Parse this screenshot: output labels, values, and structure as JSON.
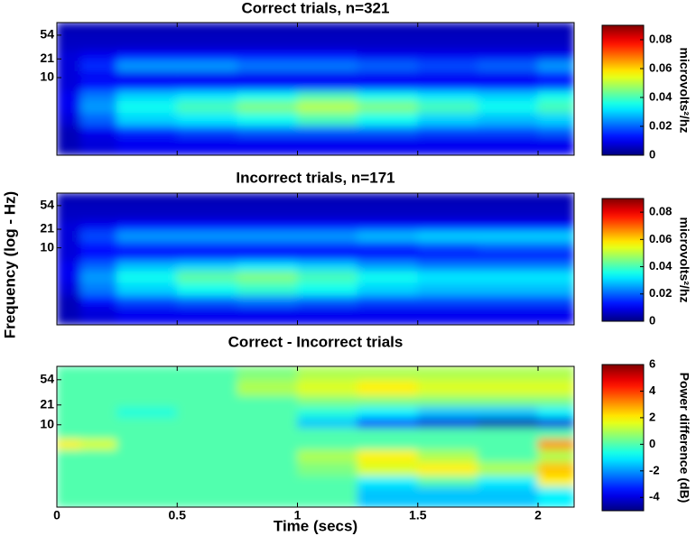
{
  "chart_data": [
    {
      "type": "heatmap",
      "title": "Correct trials, n=321",
      "xlim": [
        0,
        2.15
      ],
      "xticks": [
        0,
        0.5,
        1,
        1.5,
        2
      ],
      "xticklabels": false,
      "ylim": [
        0.46,
        89
      ],
      "yscale": "log",
      "yticks": [
        10,
        21,
        54
      ],
      "x_bins": [
        0,
        0.1,
        0.25,
        0.5,
        0.75,
        1,
        1.25,
        1.5,
        1.75,
        2,
        2.15
      ],
      "y_bins": [
        0.46,
        1,
        1.5,
        2.5,
        4,
        6,
        9,
        13,
        20,
        30,
        54,
        89
      ],
      "z": [
        [
          0.005,
          0.008,
          0.01,
          0.01,
          0.01,
          0.01,
          0.01,
          0.01,
          0.01,
          0.01
        ],
        [
          0.005,
          0.01,
          0.015,
          0.018,
          0.02,
          0.02,
          0.02,
          0.018,
          0.018,
          0.02
        ],
        [
          0.008,
          0.02,
          0.03,
          0.032,
          0.035,
          0.04,
          0.035,
          0.03,
          0.028,
          0.03
        ],
        [
          0.01,
          0.025,
          0.035,
          0.04,
          0.045,
          0.05,
          0.045,
          0.04,
          0.035,
          0.04
        ],
        [
          0.01,
          0.022,
          0.03,
          0.032,
          0.035,
          0.04,
          0.035,
          0.032,
          0.03,
          0.035
        ],
        [
          0.008,
          0.012,
          0.012,
          0.012,
          0.012,
          0.012,
          0.012,
          0.012,
          0.012,
          0.015
        ],
        [
          0.008,
          0.01,
          0.01,
          0.01,
          0.01,
          0.01,
          0.01,
          0.01,
          0.01,
          0.012
        ],
        [
          0.008,
          0.015,
          0.025,
          0.025,
          0.022,
          0.022,
          0.02,
          0.018,
          0.02,
          0.025
        ],
        [
          0.008,
          0.01,
          0.012,
          0.012,
          0.012,
          0.012,
          0.01,
          0.01,
          0.01,
          0.01
        ],
        [
          0.006,
          0.006,
          0.006,
          0.006,
          0.006,
          0.006,
          0.006,
          0.006,
          0.006,
          0.006
        ],
        [
          0.005,
          0.005,
          0.005,
          0.005,
          0.005,
          0.005,
          0.005,
          0.005,
          0.005,
          0.005
        ]
      ],
      "colormap": "jet",
      "zlim": [
        0,
        0.09
      ],
      "zticks": [
        0,
        0.02,
        0.04,
        0.06,
        0.08
      ],
      "colorbar_label": "microvolts²/hz"
    },
    {
      "type": "heatmap",
      "title": "Incorrect trials, n=171",
      "ylabel": "Frequency (log - Hz)",
      "xlim": [
        0,
        2.15
      ],
      "xticks": [
        0,
        0.5,
        1,
        1.5,
        2
      ],
      "xticklabels": false,
      "ylim": [
        0.46,
        89
      ],
      "yscale": "log",
      "yticks": [
        10,
        21,
        54
      ],
      "x_bins": [
        0,
        0.1,
        0.25,
        0.5,
        0.75,
        1,
        1.25,
        1.5,
        1.75,
        2,
        2.15
      ],
      "y_bins": [
        0.46,
        1,
        1.5,
        2.5,
        4,
        6,
        9,
        13,
        20,
        30,
        54,
        89
      ],
      "z": [
        [
          0.005,
          0.008,
          0.01,
          0.01,
          0.01,
          0.01,
          0.01,
          0.01,
          0.01,
          0.01
        ],
        [
          0.005,
          0.012,
          0.018,
          0.02,
          0.022,
          0.02,
          0.018,
          0.018,
          0.018,
          0.018
        ],
        [
          0.008,
          0.022,
          0.03,
          0.035,
          0.038,
          0.035,
          0.03,
          0.028,
          0.028,
          0.028
        ],
        [
          0.01,
          0.025,
          0.035,
          0.042,
          0.045,
          0.04,
          0.035,
          0.032,
          0.032,
          0.032
        ],
        [
          0.01,
          0.02,
          0.028,
          0.03,
          0.032,
          0.03,
          0.025,
          0.022,
          0.022,
          0.022
        ],
        [
          0.008,
          0.012,
          0.012,
          0.012,
          0.012,
          0.012,
          0.012,
          0.012,
          0.012,
          0.012
        ],
        [
          0.008,
          0.012,
          0.015,
          0.015,
          0.015,
          0.015,
          0.015,
          0.018,
          0.02,
          0.02
        ],
        [
          0.008,
          0.018,
          0.025,
          0.025,
          0.025,
          0.025,
          0.028,
          0.03,
          0.03,
          0.03
        ],
        [
          0.008,
          0.01,
          0.012,
          0.012,
          0.012,
          0.012,
          0.012,
          0.012,
          0.012,
          0.012
        ],
        [
          0.006,
          0.006,
          0.006,
          0.006,
          0.006,
          0.006,
          0.006,
          0.006,
          0.006,
          0.006
        ],
        [
          0.005,
          0.005,
          0.005,
          0.005,
          0.005,
          0.005,
          0.005,
          0.005,
          0.005,
          0.005
        ]
      ],
      "colormap": "jet",
      "zlim": [
        0,
        0.09
      ],
      "zticks": [
        0,
        0.02,
        0.04,
        0.06,
        0.08
      ],
      "colorbar_label": "microvolts²/hz"
    },
    {
      "type": "heatmap",
      "title": "Correct - Incorrect trials",
      "xlabel": "Time (secs)",
      "xlim": [
        0,
        2.15
      ],
      "xticks": [
        0,
        0.5,
        1,
        1.5,
        2
      ],
      "xticklabels": true,
      "ylim": [
        0.46,
        89
      ],
      "yscale": "log",
      "yticks": [
        10,
        21,
        54
      ],
      "x_bins": [
        0,
        0.1,
        0.25,
        0.5,
        0.75,
        1,
        1.25,
        1.5,
        1.75,
        2,
        2.15
      ],
      "y_bins": [
        0.46,
        1,
        1.5,
        2.5,
        4,
        6,
        9,
        13,
        20,
        30,
        54,
        89
      ],
      "z": [
        [
          0,
          0,
          0,
          0,
          0,
          0,
          -1.5,
          -1.5,
          -1.5,
          -1
        ],
        [
          0,
          0,
          0,
          0,
          0,
          0,
          -1,
          0,
          -1,
          2
        ],
        [
          0,
          0,
          0,
          0,
          0,
          0.5,
          1.5,
          2,
          1,
          2.5
        ],
        [
          0,
          0,
          0,
          0,
          0,
          1,
          2,
          1,
          0,
          1
        ],
        [
          2,
          1.5,
          0,
          0,
          0,
          0,
          0,
          0,
          0,
          3
        ],
        [
          0,
          0,
          0,
          0,
          0,
          0,
          0,
          0,
          0,
          0
        ],
        [
          0,
          0,
          0,
          0,
          0,
          -1.5,
          -3,
          -4,
          -4.5,
          -4
        ],
        [
          0,
          0,
          -0.5,
          0,
          0,
          -0.5,
          -1,
          -1.5,
          -1.5,
          -1
        ],
        [
          0,
          0,
          0,
          0,
          0,
          0.5,
          0.5,
          0.5,
          0.5,
          0.5
        ],
        [
          0,
          0,
          0,
          0,
          1,
          1.5,
          2,
          1.5,
          1.5,
          1.5
        ],
        [
          0,
          0,
          0,
          0,
          0.5,
          1,
          1,
          1,
          1,
          1
        ]
      ],
      "colormap": "jet",
      "zlim": [
        -5,
        6
      ],
      "zticks": [
        -4,
        -2,
        0,
        2,
        4,
        6
      ],
      "colorbar_label": "Power difference (dB)"
    }
  ]
}
